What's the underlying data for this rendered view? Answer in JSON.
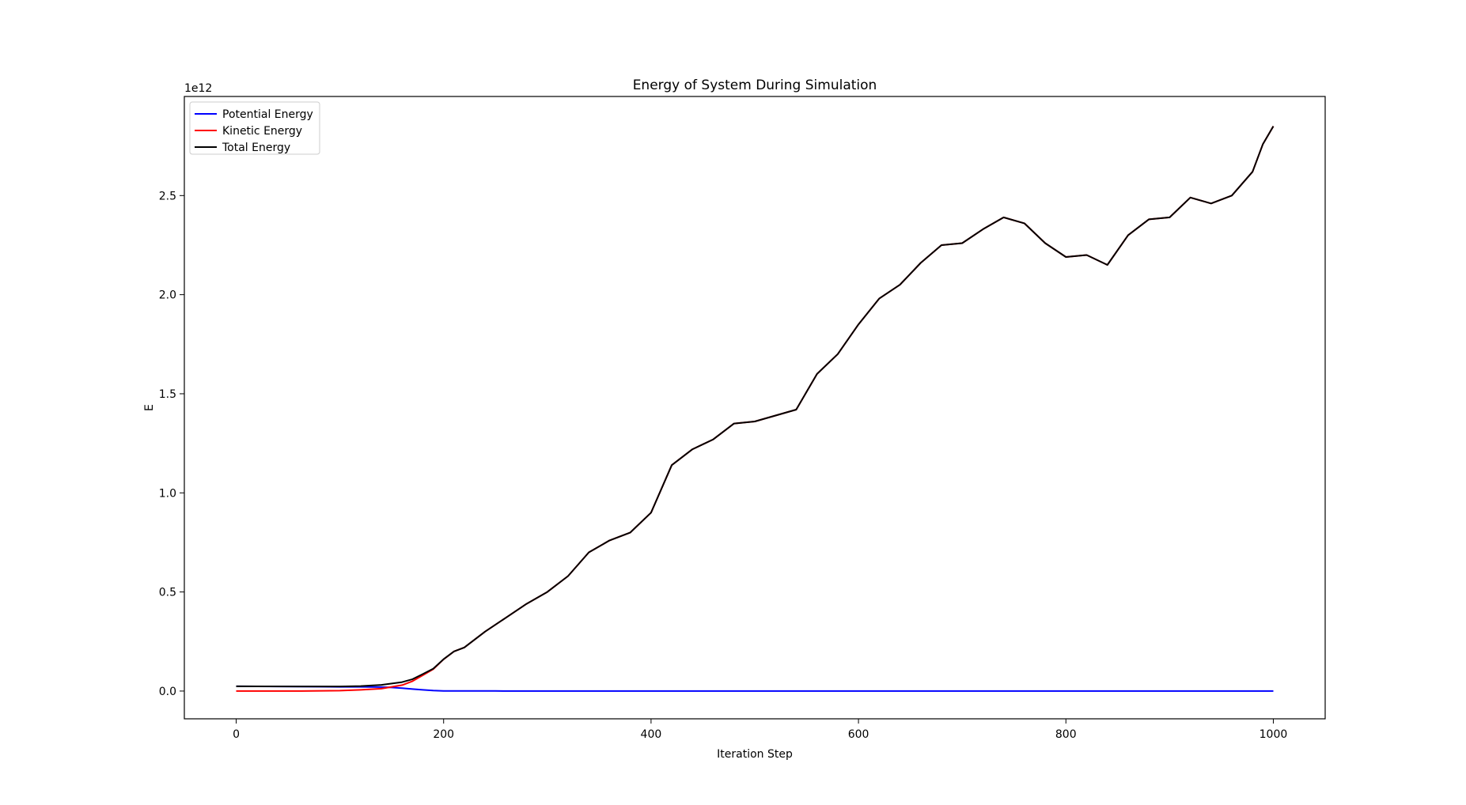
{
  "chart_data": {
    "type": "line",
    "title": "Energy of System During Simulation",
    "xlabel": "Iteration Step",
    "ylabel": "E",
    "offset_label": "1e12",
    "xlim": [
      -50,
      1050
    ],
    "ylim": [
      -0.14,
      3.0
    ],
    "xticks": [
      0,
      200,
      400,
      600,
      800,
      1000
    ],
    "yticks": [
      0.0,
      0.5,
      1.0,
      1.5,
      2.0,
      2.5
    ],
    "ytick_labels": [
      "0.0",
      "0.5",
      "1.0",
      "1.5",
      "2.0",
      "2.5"
    ],
    "legend_position": "upper left",
    "grid": false,
    "series": [
      {
        "name": "Potential Energy",
        "color": "#0000ff",
        "x": [
          0,
          40,
          80,
          100,
          120,
          140,
          150,
          160,
          170,
          180,
          190,
          200,
          220,
          250,
          300,
          400,
          500,
          600,
          700,
          800,
          900,
          1000
        ],
        "y": [
          0.024,
          0.023,
          0.022,
          0.021,
          0.021,
          0.02,
          0.018,
          0.015,
          0.01,
          0.006,
          0.003,
          0.001,
          0.0005,
          0.0003,
          0.0002,
          0.0001,
          0.0001,
          0.0001,
          0.0001,
          0.0001,
          0.0001,
          0.0001
        ]
      },
      {
        "name": "Kinetic Energy",
        "color": "#ff0000",
        "x": [
          0,
          60,
          100,
          120,
          140,
          160,
          170,
          180,
          190,
          200,
          210,
          220,
          240,
          260,
          280,
          300,
          320,
          340,
          360,
          380,
          400,
          420,
          440,
          460,
          480,
          500,
          520,
          540,
          560,
          580,
          600,
          620,
          640,
          660,
          680,
          700,
          720,
          740,
          760,
          780,
          800,
          820,
          840,
          860,
          880,
          900,
          920,
          940,
          960,
          980,
          990,
          1000
        ],
        "y": [
          0.0,
          0.0,
          0.002,
          0.006,
          0.012,
          0.03,
          0.05,
          0.08,
          0.11,
          0.16,
          0.2,
          0.22,
          0.3,
          0.37,
          0.44,
          0.5,
          0.58,
          0.7,
          0.76,
          0.8,
          0.9,
          1.14,
          1.22,
          1.27,
          1.35,
          1.36,
          1.39,
          1.42,
          1.6,
          1.7,
          1.85,
          1.98,
          2.05,
          2.16,
          2.25,
          2.26,
          2.33,
          2.39,
          2.36,
          2.26,
          2.19,
          2.2,
          2.15,
          2.3,
          2.38,
          2.39,
          2.49,
          2.46,
          2.5,
          2.62,
          2.76,
          2.85
        ]
      },
      {
        "name": "Total Energy",
        "color": "#000000",
        "x": [
          0,
          60,
          100,
          120,
          140,
          160,
          170,
          180,
          190,
          200,
          210,
          220,
          240,
          260,
          280,
          300,
          320,
          340,
          360,
          380,
          400,
          420,
          440,
          460,
          480,
          500,
          520,
          540,
          560,
          580,
          600,
          620,
          640,
          660,
          680,
          700,
          720,
          740,
          760,
          780,
          800,
          820,
          840,
          860,
          880,
          900,
          920,
          940,
          960,
          980,
          990,
          1000
        ],
        "y": [
          0.024,
          0.023,
          0.023,
          0.025,
          0.031,
          0.045,
          0.06,
          0.086,
          0.113,
          0.161,
          0.2,
          0.22,
          0.3,
          0.37,
          0.44,
          0.5,
          0.58,
          0.7,
          0.76,
          0.8,
          0.9,
          1.14,
          1.22,
          1.27,
          1.35,
          1.36,
          1.39,
          1.42,
          1.6,
          1.7,
          1.85,
          1.98,
          2.05,
          2.16,
          2.25,
          2.26,
          2.33,
          2.39,
          2.36,
          2.26,
          2.19,
          2.2,
          2.15,
          2.3,
          2.38,
          2.39,
          2.49,
          2.46,
          2.5,
          2.62,
          2.76,
          2.85
        ]
      }
    ]
  }
}
